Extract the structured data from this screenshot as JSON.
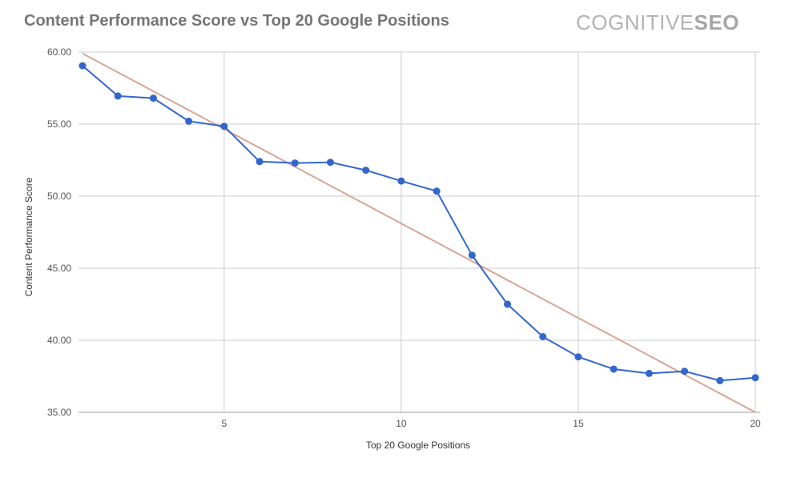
{
  "header": {
    "title": "Content Performance Score vs Top 20 Google Positions",
    "brand": {
      "text_light": "COGNITIVE",
      "text_bold": "SEO"
    }
  },
  "chart_data": {
    "type": "line",
    "title": "Content Performance Score vs Top 20 Google Positions",
    "xlabel": "Top 20 Google Positions",
    "ylabel": "Content Performance Score",
    "xlim": [
      1,
      20
    ],
    "ylim": [
      35,
      60
    ],
    "x_ticks": [
      5,
      10,
      15,
      20
    ],
    "x_tick_labels": [
      "5",
      "10",
      "15",
      "20"
    ],
    "y_ticks": [
      35,
      40,
      45,
      50,
      55,
      60
    ],
    "y_tick_labels": [
      "35.00",
      "40.00",
      "45.00",
      "50.00",
      "55.00",
      "60.00"
    ],
    "grid": true,
    "series": [
      {
        "type": "line",
        "color": "#3366cc",
        "x": [
          1,
          2,
          3,
          4,
          5,
          6,
          7,
          8,
          9,
          10,
          11,
          12,
          13,
          14,
          15,
          16,
          17,
          18,
          19,
          20
        ],
        "values": [
          59.05,
          56.95,
          56.8,
          55.2,
          54.85,
          52.4,
          52.3,
          52.35,
          51.8,
          51.05,
          50.35,
          45.9,
          42.5,
          40.25,
          38.85,
          38.0,
          37.7,
          37.85,
          37.2,
          37.4
        ]
      },
      {
        "type": "trendline",
        "color": "#d9a595",
        "x": [
          1,
          20
        ],
        "values": [
          59.9,
          35.0
        ]
      }
    ]
  }
}
